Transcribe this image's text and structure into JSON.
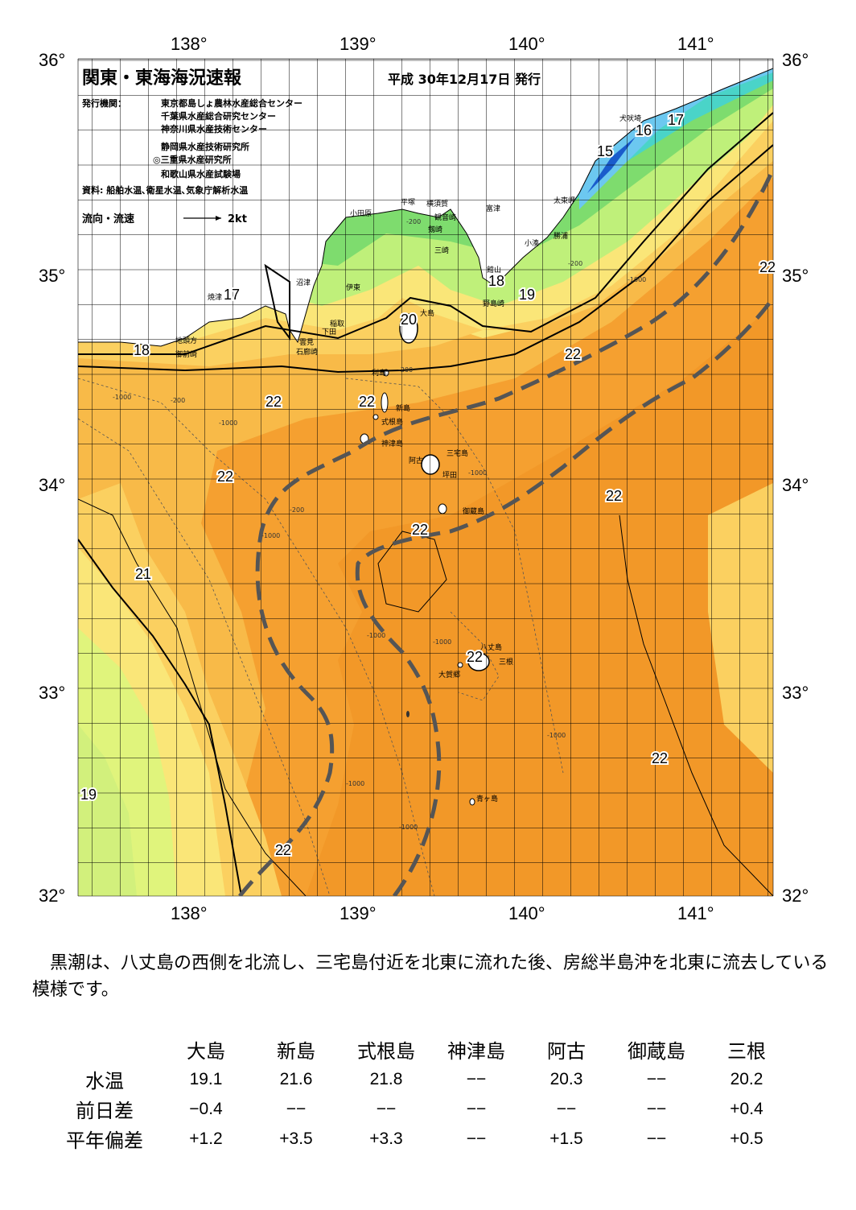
{
  "map": {
    "title": "関東・東海海況速報",
    "issue_date": "平成 30年12月17日 発行",
    "publisher_label": "発行機関：",
    "publishers": [
      "東京都島しょ農林水産総合センター",
      "千葉県水産総合研究センター",
      "神奈川県水産技術センター",
      "静岡県水産技術研究所",
      "◎三重県水産研究所",
      "和歌山県水産試験場"
    ],
    "source": "資料: 船舶水温､衛星水温､気象庁解析水温",
    "legend_flow": "流向・流速",
    "legend_speed": "2kt",
    "lon_ticks": [
      "138°",
      "139°",
      "140°",
      "141°"
    ],
    "lat_ticks": [
      "36°",
      "35°",
      "34°",
      "33°",
      "32°"
    ],
    "isotherm_labels": [
      "15",
      "16",
      "17",
      "17",
      "18",
      "18",
      "19",
      "19",
      "20",
      "21",
      "22",
      "22",
      "22",
      "22",
      "22",
      "22",
      "22",
      "22",
      "22",
      "22"
    ],
    "place_names": [
      "犬吠埼",
      "太東岬",
      "勝浦",
      "小湊",
      "富津",
      "横須賀",
      "平塚",
      "観音崎",
      "剱崎",
      "三崎",
      "小田原",
      "沼津",
      "伊東",
      "館山",
      "野島崎",
      "焼津",
      "稲取",
      "下田",
      "雲見",
      "石廊崎",
      "地頭方",
      "御前崎",
      "大島",
      "利島",
      "新島",
      "式根島",
      "神津島",
      "三宅島",
      "阿古",
      "坪田",
      "御蔵島",
      "八丈島",
      "三根",
      "大賀郷",
      "青ヶ島"
    ],
    "depth_labels": [
      "-200",
      "-1000"
    ],
    "colors": {
      "deep_orange": "#f5a030",
      "orange": "#f8ba48",
      "light_orange": "#fbd060",
      "yellow": "#fae678",
      "yellow_green": "#e0f47c",
      "light_green": "#bff07a",
      "green": "#7edc6e",
      "cyan": "#4ad4c8",
      "blue": "#3a8fe0",
      "kuroshio_axis": "#555555"
    }
  },
  "description": "　黒潮は、八丈島の西側を北流し、三宅島付近を北東に流れた後、房総半島沖を北東に流去している模様です。",
  "table": {
    "stations": [
      "大島",
      "新島",
      "式根島",
      "神津島",
      "阿古",
      "御蔵島",
      "三根"
    ],
    "rows": [
      {
        "label": "水温",
        "values": [
          "19.1",
          "21.6",
          "21.8",
          "−−",
          "20.3",
          "−−",
          "20.2"
        ]
      },
      {
        "label": "前日差",
        "values": [
          "−0.4",
          "−−",
          "−−",
          "−−",
          "−−",
          "−−",
          "+0.4"
        ]
      },
      {
        "label": "平年偏差",
        "values": [
          "+1.2",
          "+3.5",
          "+3.3",
          "−−",
          "+1.5",
          "−−",
          "+0.5"
        ]
      }
    ]
  }
}
